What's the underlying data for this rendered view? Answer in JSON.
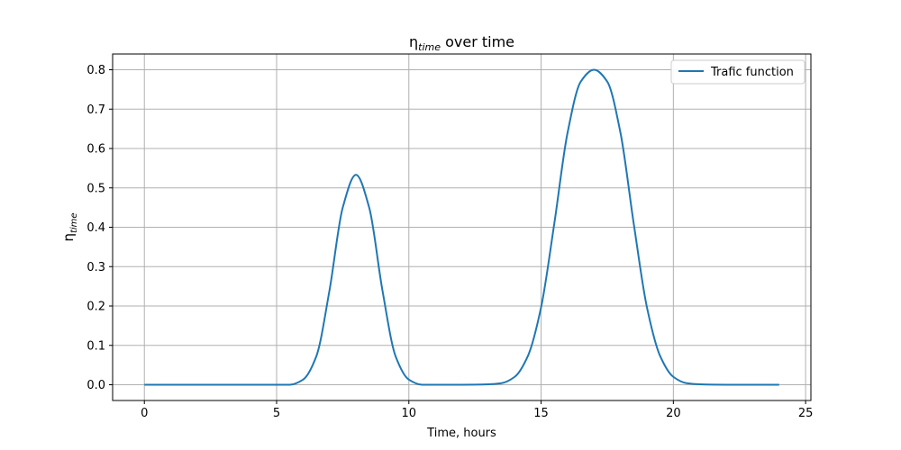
{
  "chart_data": {
    "type": "line",
    "title": {
      "symbol": "η",
      "subscript": "time",
      "suffix": " over time"
    },
    "xlabel": "Time, hours",
    "ylabel": {
      "symbol": "η",
      "subscript": "time"
    },
    "xlim": [
      -1.2,
      25.2
    ],
    "ylim": [
      -0.04,
      0.84
    ],
    "xticks": [
      0,
      5,
      10,
      15,
      20,
      25
    ],
    "xtick_labels": [
      "0",
      "5",
      "10",
      "15",
      "20",
      "25"
    ],
    "yticks": [
      0.0,
      0.1,
      0.2,
      0.3,
      0.4,
      0.5,
      0.6,
      0.7,
      0.8
    ],
    "ytick_labels": [
      "0.0",
      "0.1",
      "0.2",
      "0.3",
      "0.4",
      "0.5",
      "0.6",
      "0.7",
      "0.8"
    ],
    "grid": true,
    "legend_position": "upper right",
    "series": [
      {
        "name": "Trafic function",
        "color": "#1f77b4",
        "x": [
          0,
          5,
          5.5,
          6,
          6.5,
          7,
          7.5,
          8,
          8.5,
          9,
          9.5,
          10,
          10.5,
          11,
          12,
          13,
          13.5,
          14,
          14.5,
          15,
          15.5,
          16,
          16.5,
          17,
          17.5,
          18,
          18.5,
          19,
          19.5,
          20,
          20.5,
          21,
          22,
          24
        ],
        "y": [
          0.0,
          0.0,
          0.0,
          0.013,
          0.072,
          0.24,
          0.45,
          0.533,
          0.45,
          0.24,
          0.072,
          0.013,
          0.0,
          0.0,
          0.0,
          0.001,
          0.004,
          0.02,
          0.073,
          0.197,
          0.41,
          0.64,
          0.77,
          0.8,
          0.77,
          0.64,
          0.41,
          0.197,
          0.073,
          0.02,
          0.004,
          0.001,
          0.0,
          0.0
        ]
      }
    ]
  }
}
